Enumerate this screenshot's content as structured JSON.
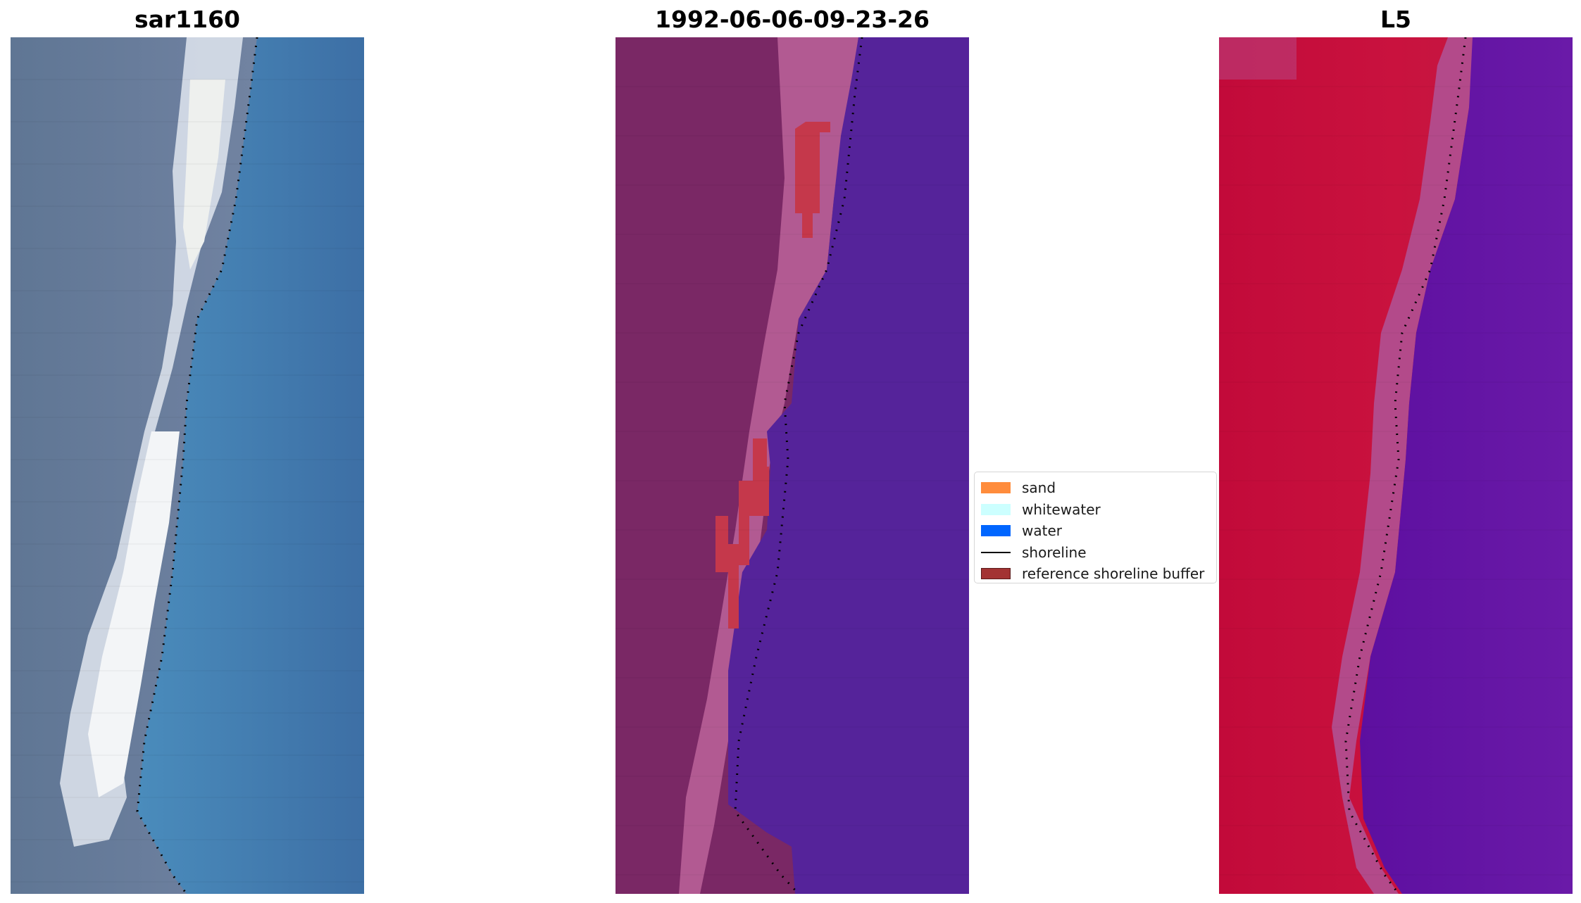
{
  "panels": [
    {
      "title": "sar1160",
      "kind": "rgb"
    },
    {
      "title": "1992-06-06-09-23-26",
      "kind": "classified"
    },
    {
      "title": "L5",
      "kind": "index"
    }
  ],
  "legend": {
    "items": [
      {
        "label": "sand",
        "color": "#ff8c3c"
      },
      {
        "label": "whitewater",
        "color": "#ccffff"
      },
      {
        "label": "water",
        "color": "#0066ff"
      },
      {
        "label": "shoreline",
        "color": "#000000"
      },
      {
        "label": "reference shoreline buffer",
        "color": "#a33333"
      }
    ]
  }
}
